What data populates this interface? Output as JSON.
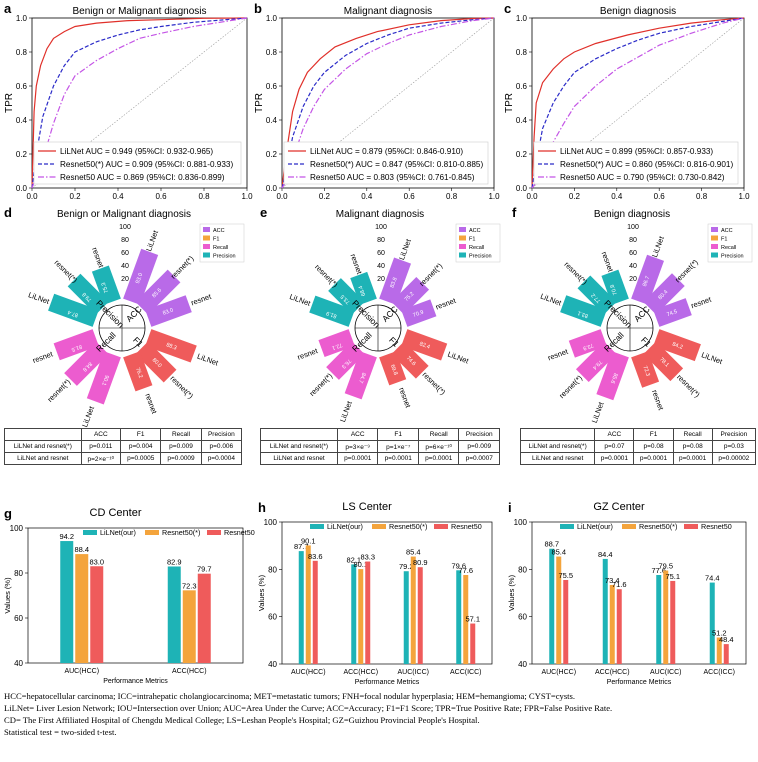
{
  "colors": {
    "red": "#e0302a",
    "blue": "#2b2bc8",
    "purple": "#c455e6",
    "teal": "#1eb3b6",
    "orange": "#f4a43c",
    "salmon": "#ef5b5b",
    "purplePetal": "#b96ae8",
    "pinkPetal": "#ec5ccf"
  },
  "roc_panels": [
    {
      "letter": "a",
      "title": "Benign or Malignant diagnosis",
      "legend": [
        "LiLNet AUC = 0.949 (95%CI: 0.932-0.965)",
        "Resnet50(*) AUC = 0.909 (95%CI: 0.881-0.933)",
        "Resnet50 AUC = 0.869 (95%CI: 0.836-0.899)"
      ],
      "series": [
        [
          [
            0,
            0
          ],
          [
            0.01,
            0.45
          ],
          [
            0.02,
            0.6
          ],
          [
            0.04,
            0.72
          ],
          [
            0.07,
            0.82
          ],
          [
            0.1,
            0.88
          ],
          [
            0.15,
            0.92
          ],
          [
            0.2,
            0.95
          ],
          [
            0.3,
            0.97
          ],
          [
            0.45,
            0.985
          ],
          [
            0.6,
            0.99
          ],
          [
            0.8,
            0.998
          ],
          [
            1,
            1
          ]
        ],
        [
          [
            0,
            0
          ],
          [
            0.02,
            0.2
          ],
          [
            0.05,
            0.42
          ],
          [
            0.1,
            0.6
          ],
          [
            0.15,
            0.72
          ],
          [
            0.2,
            0.8
          ],
          [
            0.3,
            0.86
          ],
          [
            0.4,
            0.9
          ],
          [
            0.5,
            0.93
          ],
          [
            0.6,
            0.95
          ],
          [
            0.75,
            0.975
          ],
          [
            0.9,
            0.99
          ],
          [
            1,
            1
          ]
        ],
        [
          [
            0,
            0
          ],
          [
            0.03,
            0.1
          ],
          [
            0.07,
            0.25
          ],
          [
            0.1,
            0.38
          ],
          [
            0.15,
            0.55
          ],
          [
            0.2,
            0.66
          ],
          [
            0.3,
            0.75
          ],
          [
            0.4,
            0.82
          ],
          [
            0.5,
            0.88
          ],
          [
            0.6,
            0.91
          ],
          [
            0.75,
            0.95
          ],
          [
            0.9,
            0.98
          ],
          [
            1,
            1
          ]
        ]
      ]
    },
    {
      "letter": "b",
      "title": "Malignant diagnosis",
      "legend": [
        "LiLNet AUC = 0.879 (95%CI: 0.846-0.910)",
        "Resnet50(*) AUC = 0.847 (95%CI: 0.810-0.885)",
        "Resnet50 AUC = 0.803 (95%CI: 0.761-0.845)"
      ],
      "series": [
        [
          [
            0,
            0
          ],
          [
            0.02,
            0.2
          ],
          [
            0.05,
            0.45
          ],
          [
            0.08,
            0.58
          ],
          [
            0.12,
            0.68
          ],
          [
            0.18,
            0.76
          ],
          [
            0.25,
            0.83
          ],
          [
            0.35,
            0.88
          ],
          [
            0.45,
            0.92
          ],
          [
            0.6,
            0.96
          ],
          [
            0.75,
            0.985
          ],
          [
            0.9,
            0.997
          ],
          [
            1,
            1
          ]
        ],
        [
          [
            0,
            0
          ],
          [
            0.02,
            0.1
          ],
          [
            0.05,
            0.3
          ],
          [
            0.1,
            0.48
          ],
          [
            0.15,
            0.6
          ],
          [
            0.2,
            0.68
          ],
          [
            0.3,
            0.78
          ],
          [
            0.4,
            0.85
          ],
          [
            0.5,
            0.9
          ],
          [
            0.6,
            0.94
          ],
          [
            0.75,
            0.97
          ],
          [
            0.9,
            0.99
          ],
          [
            1,
            1
          ]
        ],
        [
          [
            0,
            0
          ],
          [
            0.03,
            0.06
          ],
          [
            0.06,
            0.2
          ],
          [
            0.1,
            0.35
          ],
          [
            0.15,
            0.48
          ],
          [
            0.2,
            0.58
          ],
          [
            0.3,
            0.7
          ],
          [
            0.4,
            0.79
          ],
          [
            0.5,
            0.85
          ],
          [
            0.6,
            0.9
          ],
          [
            0.75,
            0.95
          ],
          [
            0.9,
            0.985
          ],
          [
            1,
            1
          ]
        ]
      ]
    },
    {
      "letter": "c",
      "title": "Benign diagnosis",
      "legend": [
        "LiLNet AUC = 0.899 (95%CI: 0.857-0.933)",
        "Resnet50(*) AUC = 0.860 (95%CI: 0.816-0.901)",
        "Resnet50 AUC = 0.790 (95%CI: 0.730-0.842)"
      ],
      "series": [
        [
          [
            0,
            0
          ],
          [
            0.01,
            0.3
          ],
          [
            0.02,
            0.5
          ],
          [
            0.05,
            0.62
          ],
          [
            0.1,
            0.7
          ],
          [
            0.15,
            0.76
          ],
          [
            0.2,
            0.8
          ],
          [
            0.3,
            0.85
          ],
          [
            0.45,
            0.9
          ],
          [
            0.6,
            0.94
          ],
          [
            0.75,
            0.97
          ],
          [
            0.9,
            0.99
          ],
          [
            1,
            1
          ]
        ],
        [
          [
            0,
            0
          ],
          [
            0.02,
            0.15
          ],
          [
            0.05,
            0.35
          ],
          [
            0.1,
            0.5
          ],
          [
            0.15,
            0.6
          ],
          [
            0.2,
            0.68
          ],
          [
            0.3,
            0.76
          ],
          [
            0.4,
            0.82
          ],
          [
            0.5,
            0.87
          ],
          [
            0.6,
            0.91
          ],
          [
            0.75,
            0.95
          ],
          [
            0.9,
            0.98
          ],
          [
            1,
            1
          ]
        ],
        [
          [
            0,
            0
          ],
          [
            0.03,
            0.05
          ],
          [
            0.06,
            0.15
          ],
          [
            0.1,
            0.27
          ],
          [
            0.15,
            0.38
          ],
          [
            0.2,
            0.48
          ],
          [
            0.3,
            0.6
          ],
          [
            0.4,
            0.7
          ],
          [
            0.5,
            0.77
          ],
          [
            0.6,
            0.84
          ],
          [
            0.75,
            0.91
          ],
          [
            0.9,
            0.97
          ],
          [
            1,
            1
          ]
        ]
      ]
    }
  ],
  "roc_axes": {
    "xlabel": "FPR",
    "ylabel": "TPR",
    "ticks": [
      "0.0",
      "0.2",
      "0.4",
      "0.6",
      "0.8",
      "1.0"
    ]
  },
  "radial_panels": [
    {
      "letter": "d",
      "title": "Benign or Malignant diagnosis",
      "petals": [
        {
          "label": "LiLNet",
          "value": "93.0"
        },
        {
          "label": "resnet(*)",
          "value": "85.6"
        },
        {
          "label": "resnet",
          "value": "83.0"
        },
        {
          "label": "LiLNet",
          "value": "88.3"
        },
        {
          "label": "resnet(*)",
          "value": "80.0"
        },
        {
          "label": "resnet",
          "value": "76.2"
        },
        {
          "label": "LiLNet",
          "value": "90.1"
        },
        {
          "label": "resnet(*)",
          "value": "84.8"
        },
        {
          "label": "resnet",
          "value": "81.5"
        },
        {
          "label": "LiLNet",
          "value": "87.4"
        },
        {
          "label": "resnet(*)",
          "value": "79.8"
        },
        {
          "label": "resnet",
          "value": "75.3"
        }
      ],
      "table": {
        "headers": [
          "",
          "ACC",
          "F1",
          "Recall",
          "Precision"
        ],
        "rows": [
          [
            "LiLNet and resnet(*)",
            "p=0.011",
            "p=0.004",
            "p=0.009",
            "p=0.006"
          ],
          [
            "LiLNet and resnet",
            "p=2×e⁻¹⁰",
            "p=0.0005",
            "p=0.0009",
            "p=0.0004"
          ]
        ]
      }
    },
    {
      "letter": "e",
      "title": "Malignant diagnosis",
      "petals": [
        {
          "label": "LiLNet",
          "value": "83.8"
        },
        {
          "label": "resnet(*)",
          "value": "75.2"
        },
        {
          "label": "resnet",
          "value": "70.9"
        },
        {
          "label": "LiLNet",
          "value": "82.4"
        },
        {
          "label": "resnet(*)",
          "value": "74.6"
        },
        {
          "label": "resnet",
          "value": "69.8"
        },
        {
          "label": "LiLNet",
          "value": "84.7"
        },
        {
          "label": "resnet(*)",
          "value": "76.3"
        },
        {
          "label": "resnet",
          "value": "72.1"
        },
        {
          "label": "LiLNet",
          "value": "81.9"
        },
        {
          "label": "resnet(*)",
          "value": "73.5"
        },
        {
          "label": "resnet",
          "value": "68.4"
        }
      ],
      "table": {
        "headers": [
          "",
          "ACC",
          "F1",
          "Recall",
          "Precision"
        ],
        "rows": [
          [
            "LiLNet and resnet(*)",
            "p=3×e⁻⁹",
            "p=1×e⁻⁷",
            "p=6×e⁻¹⁰",
            "p=0.009"
          ],
          [
            "LiLNet and resnet",
            "p=0.0001",
            "p=0.0001",
            "p=0.0001",
            "p=0.0007"
          ]
        ]
      }
    },
    {
      "letter": "f",
      "title": "Benign diagnosis",
      "petals": [
        {
          "label": "LiLNet",
          "value": "86.7"
        },
        {
          "label": "resnet(*)",
          "value": "80.4"
        },
        {
          "label": "resnet",
          "value": "74.5"
        },
        {
          "label": "LiLNet",
          "value": "84.2"
        },
        {
          "label": "resnet(*)",
          "value": "78.1"
        },
        {
          "label": "resnet",
          "value": "72.3"
        },
        {
          "label": "LiLNet",
          "value": "85.6"
        },
        {
          "label": "resnet(*)",
          "value": "79.4"
        },
        {
          "label": "resnet",
          "value": "73.9"
        },
        {
          "label": "LiLNet",
          "value": "83.1"
        },
        {
          "label": "resnet(*)",
          "value": "77.2"
        },
        {
          "label": "resnet",
          "value": "70.8"
        }
      ],
      "table": {
        "headers": [
          "",
          "ACC",
          "F1",
          "Recall",
          "Precision"
        ],
        "rows": [
          [
            "LiLNet and resnet(*)",
            "p=0.07",
            "p=0.08",
            "p=0.08",
            "p=0.03"
          ],
          [
            "LiLNet and resnet",
            "p=0.0001",
            "p=0.0001",
            "p=0.0001",
            "p=0.00002"
          ]
        ]
      }
    }
  ],
  "radial_common": {
    "metrics": [
      "ACC",
      "F1",
      "Recall",
      "Precision"
    ],
    "legend": [
      "ACC",
      "F1",
      "Recall",
      "Precision"
    ],
    "ring_ticks": [
      "20",
      "40",
      "60",
      "80",
      "100"
    ]
  },
  "chart_data": [
    {
      "type": "bar",
      "letter": "g",
      "title": "CD  Center",
      "categories": [
        "AUC(HCC)",
        "ACC(HCC)"
      ],
      "series": [
        {
          "name": "LiLNet(our)",
          "values": [
            94.2,
            82.9
          ]
        },
        {
          "name": "Resnet50(*)",
          "values": [
            88.4,
            72.3
          ]
        },
        {
          "name": "Resnet50",
          "values": [
            83.0,
            79.7
          ]
        }
      ],
      "labels": [
        [
          "94.2",
          "88.4",
          "83.0"
        ],
        [
          "82.9",
          "72.3",
          "79.7"
        ]
      ],
      "xlabel": "Performance Metrics",
      "ylabel": "Values (%)",
      "ylim": [
        40,
        100
      ],
      "yticks": [
        "40",
        "60",
        "80",
        "100"
      ]
    },
    {
      "type": "bar",
      "letter": "h",
      "title": "LS Center",
      "categories": [
        "AUC(HCC)",
        "ACC(HCC)",
        "AUC(ICC)",
        "ACC(ICC)"
      ],
      "series": [
        {
          "name": "LiLNet(our)",
          "values": [
            87.7,
            82.1,
            79.2,
            79.6
          ]
        },
        {
          "name": "Resnet50(*)",
          "values": [
            90.1,
            80.1,
            85.4,
            77.6
          ]
        },
        {
          "name": "Resnet50",
          "values": [
            83.6,
            83.3,
            80.9,
            57.1
          ]
        }
      ],
      "labels": [
        [
          "87.7",
          "90.1",
          "83.6"
        ],
        [
          "82.1",
          "80.1",
          "83.3"
        ],
        [
          "79.2",
          "85.4",
          "80.9"
        ],
        [
          "79.6",
          "77.6",
          "57.1"
        ]
      ],
      "xlabel": "Performance Metrics",
      "ylabel": "Values (%)",
      "ylim": [
        40,
        100
      ],
      "yticks": [
        "40",
        "60",
        "80",
        "100"
      ]
    },
    {
      "type": "bar",
      "letter": "i",
      "title": "GZ Center",
      "categories": [
        "AUC(HCC)",
        "ACC(HCC)",
        "AUC(ICC)",
        "ACC(ICC)"
      ],
      "series": [
        {
          "name": "LiLNet(our)",
          "values": [
            88.7,
            84.4,
            77.6,
            74.4
          ]
        },
        {
          "name": "Resnet50(*)",
          "values": [
            85.4,
            73.4,
            79.5,
            51.2
          ]
        },
        {
          "name": "Resnet50",
          "values": [
            75.5,
            71.6,
            75.1,
            48.4
          ]
        }
      ],
      "labels": [
        [
          "88.7",
          "85.4",
          "75.5"
        ],
        [
          "84.4",
          "73.4",
          "71.6"
        ],
        [
          "77.6",
          "79.5",
          "75.1"
        ],
        [
          "74.4",
          "51.2",
          "48.4"
        ]
      ],
      "xlabel": "Performance Metrics",
      "ylabel": "Values (%)",
      "ylim": [
        40,
        100
      ],
      "yticks": [
        "40",
        "60",
        "80",
        "100"
      ]
    }
  ],
  "footnotes": [
    "HCC=hepatocellular carcinoma; ICC=intrahepatic cholangiocarcinoma; MET=metastatic tumors; FNH=focal nodular hyperplasia; HEM=hemangioma; CYST=cysts.",
    "LiLNet= Liver Lesion Network; IOU=Intersection over Union; AUC=Area Under the Curve; ACC=Accuracy; F1=F1 Score; TPR=True Positive Rate; FPR=False Positive Rate.",
    "CD= The First Affiliated Hospital of Chengdu Medical College; LS=Leshan People's Hospital; GZ=Guizhou Provincial People's Hospital.",
    "Statistical test = two-sided t-test."
  ]
}
